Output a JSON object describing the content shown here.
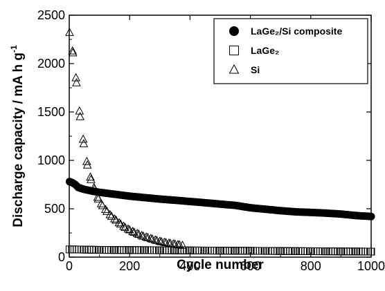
{
  "chart_data": {
    "type": "scatter",
    "xlabel": "Cycle number",
    "ylabel": "Discharge capacity / mA h g",
    "ylabel_sup": "-1",
    "xlim": [
      0,
      1000
    ],
    "ylim": [
      0,
      2500
    ],
    "xticks": [
      0,
      200,
      400,
      600,
      800,
      1000
    ],
    "yticks": [
      0,
      500,
      1000,
      1500,
      2000,
      2500
    ],
    "grid": false,
    "legend_position": "top-right",
    "series": [
      {
        "name": "LaGe₂/Si composite",
        "marker": "filled-circle",
        "color": "#000000",
        "x": [
          1,
          10,
          20,
          30,
          50,
          80,
          100,
          150,
          200,
          250,
          300,
          350,
          400,
          450,
          500,
          550,
          600,
          650,
          700,
          750,
          800,
          850,
          900,
          950,
          1000
        ],
        "y": [
          780,
          770,
          750,
          720,
          700,
          680,
          670,
          650,
          630,
          615,
          600,
          588,
          575,
          562,
          548,
          535,
          510,
          495,
          480,
          468,
          462,
          455,
          445,
          430,
          420
        ]
      },
      {
        "name": "LaGe₂",
        "marker": "open-square",
        "color": "#000000",
        "x": [
          1,
          50,
          100,
          150,
          200,
          250,
          300,
          350,
          400,
          450,
          500,
          550,
          600,
          650,
          700,
          750,
          800,
          850,
          900,
          950,
          1000
        ],
        "y": [
          80,
          78,
          75,
          74,
          73,
          72,
          71,
          70,
          69,
          68,
          67,
          66,
          65,
          64,
          63,
          62,
          61,
          60,
          59,
          58,
          57
        ]
      },
      {
        "name": "Si",
        "marker": "open-triangle",
        "color": "#000000",
        "x": [
          1,
          12,
          24,
          36,
          48,
          60,
          72,
          84,
          96,
          110,
          125,
          140,
          155,
          170,
          185,
          200,
          215,
          230,
          245,
          260,
          275,
          290,
          305,
          320,
          335,
          350,
          365,
          375
        ],
        "y": [
          2320,
          2110,
          1800,
          1450,
          1170,
          950,
          800,
          700,
          600,
          530,
          470,
          420,
          380,
          340,
          305,
          280,
          255,
          235,
          215,
          200,
          185,
          170,
          158,
          148,
          140,
          132,
          125,
          120
        ]
      }
    ]
  }
}
